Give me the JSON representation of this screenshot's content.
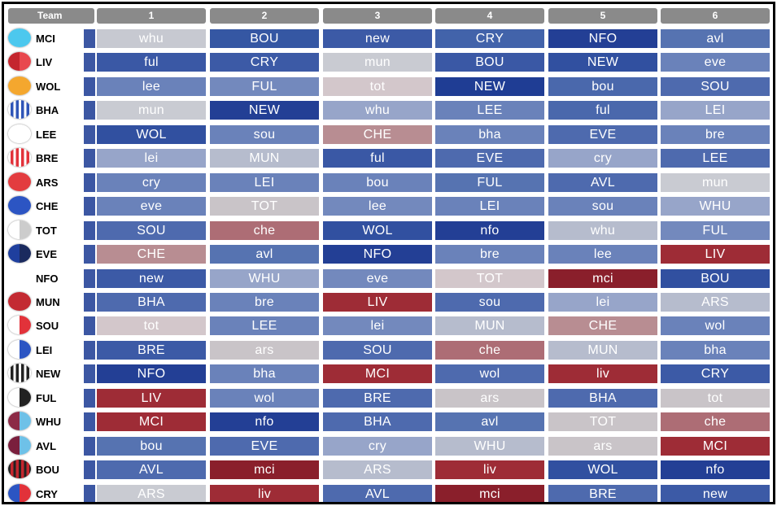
{
  "header": {
    "team_label": "Team",
    "rounds": [
      "1",
      "2",
      "3",
      "4",
      "5",
      "6"
    ]
  },
  "teams": [
    {
      "code": "MCI",
      "logo": {
        "type": "solid",
        "colors": [
          "#4cc8ee"
        ]
      },
      "fixtures": [
        {
          "opp": "whu",
          "color": "#c7c9d1"
        },
        {
          "opp": "BOU",
          "color": "#3557a3"
        },
        {
          "opp": "new",
          "color": "#3c5aa6"
        },
        {
          "opp": "CRY",
          "color": "#4263aa"
        },
        {
          "opp": "NFO",
          "color": "#233f95"
        },
        {
          "opp": "avl",
          "color": "#5673b1"
        }
      ]
    },
    {
      "code": "LIV",
      "logo": {
        "type": "halves",
        "colors": [
          "#c4262e",
          "#e8484e"
        ]
      },
      "fixtures": [
        {
          "opp": "ful",
          "color": "#3a58a5"
        },
        {
          "opp": "CRY",
          "color": "#3c5aa6"
        },
        {
          "opp": "mun",
          "color": "#c9cbd2"
        },
        {
          "opp": "BOU",
          "color": "#3a58a5"
        },
        {
          "opp": "NEW",
          "color": "#3150a0"
        },
        {
          "opp": "eve",
          "color": "#6a82ba"
        }
      ]
    },
    {
      "code": "WOL",
      "logo": {
        "type": "solid",
        "colors": [
          "#f4a72e"
        ]
      },
      "fixtures": [
        {
          "opp": "lee",
          "color": "#6a82ba"
        },
        {
          "opp": "FUL",
          "color": "#7389bd"
        },
        {
          "opp": "tot",
          "color": "#d3c7cb"
        },
        {
          "opp": "NEW",
          "color": "#1f3d94"
        },
        {
          "opp": "bou",
          "color": "#4a68ac"
        },
        {
          "opp": "SOU",
          "color": "#4e6aae"
        }
      ]
    },
    {
      "code": "BHA",
      "logo": {
        "type": "stripes",
        "colors": [
          "#2f55b7",
          "#ffffff"
        ]
      },
      "fixtures": [
        {
          "opp": "mun",
          "color": "#c9cbd2"
        },
        {
          "opp": "NEW",
          "color": "#233f95"
        },
        {
          "opp": "whu",
          "color": "#97a5c9"
        },
        {
          "opp": "LEE",
          "color": "#6a82ba"
        },
        {
          "opp": "ful",
          "color": "#4a68ac"
        },
        {
          "opp": "LEI",
          "color": "#97a5c9"
        }
      ]
    },
    {
      "code": "LEE",
      "logo": {
        "type": "solid",
        "colors": [
          "#ffffff"
        ]
      },
      "fixtures": [
        {
          "opp": "WOL",
          "color": "#3150a0"
        },
        {
          "opp": "sou",
          "color": "#6a82ba"
        },
        {
          "opp": "CHE",
          "color": "#b88d92"
        },
        {
          "opp": "bha",
          "color": "#6a82ba"
        },
        {
          "opp": "EVE",
          "color": "#4e6aae"
        },
        {
          "opp": "bre",
          "color": "#6a82ba"
        }
      ]
    },
    {
      "code": "BRE",
      "logo": {
        "type": "stripes",
        "colors": [
          "#e2323a",
          "#ffffff"
        ]
      },
      "fixtures": [
        {
          "opp": "lei",
          "color": "#97a5c9"
        },
        {
          "opp": "MUN",
          "color": "#b6bccd"
        },
        {
          "opp": "ful",
          "color": "#3a58a5"
        },
        {
          "opp": "EVE",
          "color": "#4e6aae"
        },
        {
          "opp": "cry",
          "color": "#97a5c9"
        },
        {
          "opp": "LEE",
          "color": "#4e6aae"
        }
      ]
    },
    {
      "code": "ARS",
      "logo": {
        "type": "solid",
        "colors": [
          "#e33c3f"
        ]
      },
      "fixtures": [
        {
          "opp": "cry",
          "color": "#6a82ba"
        },
        {
          "opp": "LEI",
          "color": "#6a82ba"
        },
        {
          "opp": "bou",
          "color": "#6a82ba"
        },
        {
          "opp": "FUL",
          "color": "#5673b1"
        },
        {
          "opp": "AVL",
          "color": "#4e6aae"
        },
        {
          "opp": "mun",
          "color": "#c9cbd2"
        }
      ]
    },
    {
      "code": "CHE",
      "logo": {
        "type": "solid",
        "colors": [
          "#2c55c3"
        ]
      },
      "fixtures": [
        {
          "opp": "eve",
          "color": "#6a82ba"
        },
        {
          "opp": "TOT",
          "color": "#c9c4c8"
        },
        {
          "opp": "lee",
          "color": "#7389bd"
        },
        {
          "opp": "LEI",
          "color": "#6a82ba"
        },
        {
          "opp": "sou",
          "color": "#6a82ba"
        },
        {
          "opp": "WHU",
          "color": "#97a5c9"
        }
      ]
    },
    {
      "code": "TOT",
      "logo": {
        "type": "halves",
        "colors": [
          "#ffffff",
          "#cccccc"
        ]
      },
      "fixtures": [
        {
          "opp": "SOU",
          "color": "#4e6aae"
        },
        {
          "opp": "che",
          "color": "#ad6d75"
        },
        {
          "opp": "WOL",
          "color": "#3150a0"
        },
        {
          "opp": "nfo",
          "color": "#233f95"
        },
        {
          "opp": "whu",
          "color": "#b6bccd"
        },
        {
          "opp": "FUL",
          "color": "#7389bd"
        }
      ]
    },
    {
      "code": "EVE",
      "logo": {
        "type": "halves",
        "colors": [
          "#1f3f9e",
          "#1a2a5e"
        ]
      },
      "fixtures": [
        {
          "opp": "CHE",
          "color": "#b88d92"
        },
        {
          "opp": "avl",
          "color": "#5673b1"
        },
        {
          "opp": "NFO",
          "color": "#233f95"
        },
        {
          "opp": "bre",
          "color": "#6a82ba"
        },
        {
          "opp": "lee",
          "color": "#6a82ba"
        },
        {
          "opp": "LIV",
          "color": "#9e2c36"
        }
      ]
    },
    {
      "code": "NFO",
      "logo": {
        "type": "none",
        "colors": []
      },
      "fixtures": [
        {
          "opp": "new",
          "color": "#3c5aa6"
        },
        {
          "opp": "WHU",
          "color": "#97a5c9"
        },
        {
          "opp": "eve",
          "color": "#7389bd"
        },
        {
          "opp": "TOT",
          "color": "#d3c7cb"
        },
        {
          "opp": "mci",
          "color": "#8a1f2b"
        },
        {
          "opp": "BOU",
          "color": "#3150a0"
        }
      ]
    },
    {
      "code": "MUN",
      "logo": {
        "type": "solid",
        "colors": [
          "#c32a32"
        ]
      },
      "fixtures": [
        {
          "opp": "BHA",
          "color": "#4e6aae"
        },
        {
          "opp": "bre",
          "color": "#6a82ba"
        },
        {
          "opp": "LIV",
          "color": "#9e2c36"
        },
        {
          "opp": "sou",
          "color": "#4e6aae"
        },
        {
          "opp": "lei",
          "color": "#97a5c9"
        },
        {
          "opp": "ARS",
          "color": "#b6bccd"
        }
      ]
    },
    {
      "code": "SOU",
      "logo": {
        "type": "halves",
        "colors": [
          "#ffffff",
          "#e2323a"
        ]
      },
      "fixtures": [
        {
          "opp": "tot",
          "color": "#d3c7cb"
        },
        {
          "opp": "LEE",
          "color": "#6a82ba"
        },
        {
          "opp": "lei",
          "color": "#7389bd"
        },
        {
          "opp": "MUN",
          "color": "#b6bccd"
        },
        {
          "opp": "CHE",
          "color": "#b88d92"
        },
        {
          "opp": "wol",
          "color": "#6a82ba"
        }
      ]
    },
    {
      "code": "LEI",
      "logo": {
        "type": "halves",
        "colors": [
          "#ffffff",
          "#2c55c3"
        ]
      },
      "fixtures": [
        {
          "opp": "BRE",
          "color": "#3c5aa6"
        },
        {
          "opp": "ars",
          "color": "#c9c4c8"
        },
        {
          "opp": "SOU",
          "color": "#4e6aae"
        },
        {
          "opp": "che",
          "color": "#ad6d75"
        },
        {
          "opp": "MUN",
          "color": "#b6bccd"
        },
        {
          "opp": "bha",
          "color": "#6a82ba"
        }
      ]
    },
    {
      "code": "NEW",
      "logo": {
        "type": "stripes",
        "colors": [
          "#222222",
          "#ffffff"
        ]
      },
      "fixtures": [
        {
          "opp": "NFO",
          "color": "#233f95"
        },
        {
          "opp": "bha",
          "color": "#6a82ba"
        },
        {
          "opp": "MCI",
          "color": "#9e2c36"
        },
        {
          "opp": "wol",
          "color": "#4e6aae"
        },
        {
          "opp": "liv",
          "color": "#9e2c36"
        },
        {
          "opp": "CRY",
          "color": "#3c5aa6"
        }
      ]
    },
    {
      "code": "FUL",
      "logo": {
        "type": "halves",
        "colors": [
          "#ffffff",
          "#222222"
        ]
      },
      "fixtures": [
        {
          "opp": "LIV",
          "color": "#9e2c36"
        },
        {
          "opp": "wol",
          "color": "#6a82ba"
        },
        {
          "opp": "BRE",
          "color": "#4e6aae"
        },
        {
          "opp": "ars",
          "color": "#c9c4c8"
        },
        {
          "opp": "BHA",
          "color": "#4e6aae"
        },
        {
          "opp": "tot",
          "color": "#c9c4c8"
        }
      ]
    },
    {
      "code": "WHU",
      "logo": {
        "type": "halves",
        "colors": [
          "#8c2a46",
          "#6ec1e8"
        ]
      },
      "fixtures": [
        {
          "opp": "MCI",
          "color": "#9e2c36"
        },
        {
          "opp": "nfo",
          "color": "#233f95"
        },
        {
          "opp": "BHA",
          "color": "#4e6aae"
        },
        {
          "opp": "avl",
          "color": "#5673b1"
        },
        {
          "opp": "TOT",
          "color": "#c9c4c8"
        },
        {
          "opp": "che",
          "color": "#ad6d75"
        }
      ]
    },
    {
      "code": "AVL",
      "logo": {
        "type": "halves",
        "colors": [
          "#7a1f3d",
          "#6ec1e8"
        ]
      },
      "fixtures": [
        {
          "opp": "bou",
          "color": "#5673b1"
        },
        {
          "opp": "EVE",
          "color": "#4e6aae"
        },
        {
          "opp": "cry",
          "color": "#97a5c9"
        },
        {
          "opp": "WHU",
          "color": "#b6bccd"
        },
        {
          "opp": "ars",
          "color": "#c9c4c8"
        },
        {
          "opp": "MCI",
          "color": "#9e2c36"
        }
      ]
    },
    {
      "code": "BOU",
      "logo": {
        "type": "stripes",
        "colors": [
          "#c4262e",
          "#222222"
        ]
      },
      "fixtures": [
        {
          "opp": "AVL",
          "color": "#4e6aae"
        },
        {
          "opp": "mci",
          "color": "#8a1f2b"
        },
        {
          "opp": "ARS",
          "color": "#b6bccd"
        },
        {
          "opp": "liv",
          "color": "#9e2c36"
        },
        {
          "opp": "WOL",
          "color": "#3150a0"
        },
        {
          "opp": "nfo",
          "color": "#233f95"
        }
      ]
    },
    {
      "code": "CRY",
      "logo": {
        "type": "halves",
        "colors": [
          "#2c55c3",
          "#e2323a"
        ]
      },
      "fixtures": [
        {
          "opp": "ARS",
          "color": "#c9cbd2"
        },
        {
          "opp": "liv",
          "color": "#9e2c36"
        },
        {
          "opp": "AVL",
          "color": "#4e6aae"
        },
        {
          "opp": "mci",
          "color": "#8a1f2b"
        },
        {
          "opp": "BRE",
          "color": "#4e6aae"
        },
        {
          "opp": "new",
          "color": "#3c5aa6"
        }
      ]
    }
  ]
}
